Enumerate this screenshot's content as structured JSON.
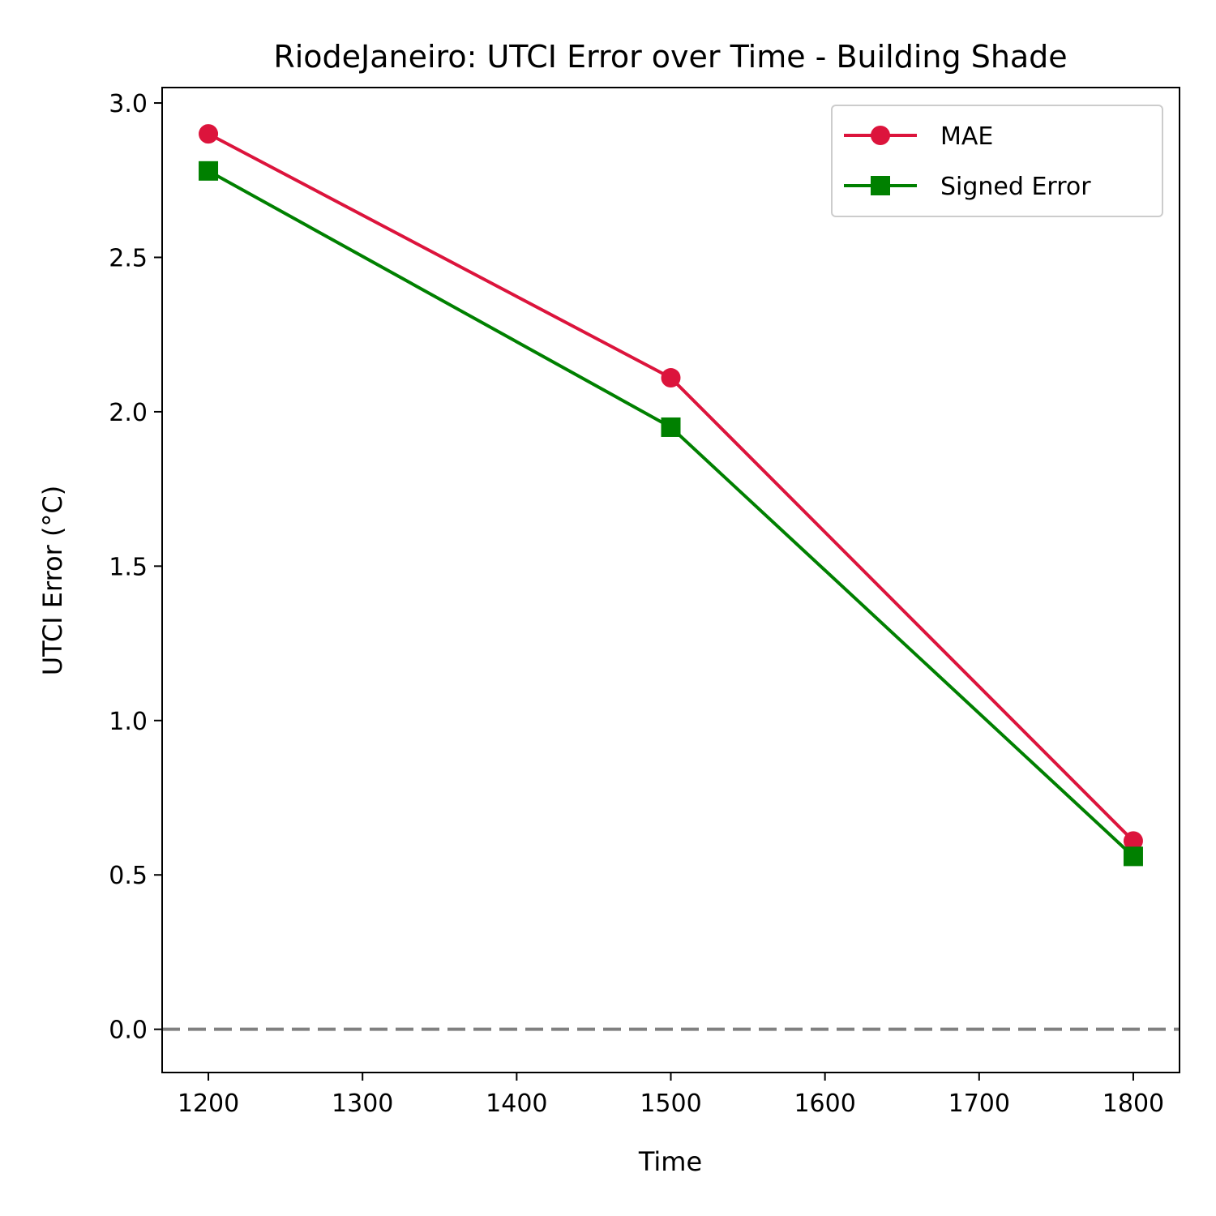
{
  "chart_data": {
    "type": "line",
    "title": "RiodeJaneiro: UTCI Error over Time - Building Shade",
    "xlabel": "Time",
    "ylabel": "UTCI Error (°C)",
    "xlim": [
      1170,
      1830
    ],
    "ylim": [
      -0.14,
      3.05
    ],
    "x_ticks": [
      1200,
      1300,
      1400,
      1500,
      1600,
      1700,
      1800
    ],
    "x_tick_labels": [
      "1200",
      "1300",
      "1400",
      "1500",
      "1600",
      "1700",
      "1800"
    ],
    "y_ticks": [
      0.0,
      0.5,
      1.0,
      1.5,
      2.0,
      2.5,
      3.0
    ],
    "y_tick_labels": [
      "0.0",
      "0.5",
      "1.0",
      "1.5",
      "2.0",
      "2.5",
      "3.0"
    ],
    "grid": false,
    "legend_position": "top-right",
    "reference_line": {
      "y": 0.0,
      "style": "dashed",
      "color": "#808080"
    },
    "x": [
      1200,
      1500,
      1800
    ],
    "series": [
      {
        "name": "MAE",
        "values": [
          2.9,
          2.11,
          0.61
        ],
        "color": "#dc143c",
        "marker": "circle"
      },
      {
        "name": "Signed Error",
        "values": [
          2.78,
          1.95,
          0.56
        ],
        "color": "#008000",
        "marker": "square"
      }
    ]
  }
}
